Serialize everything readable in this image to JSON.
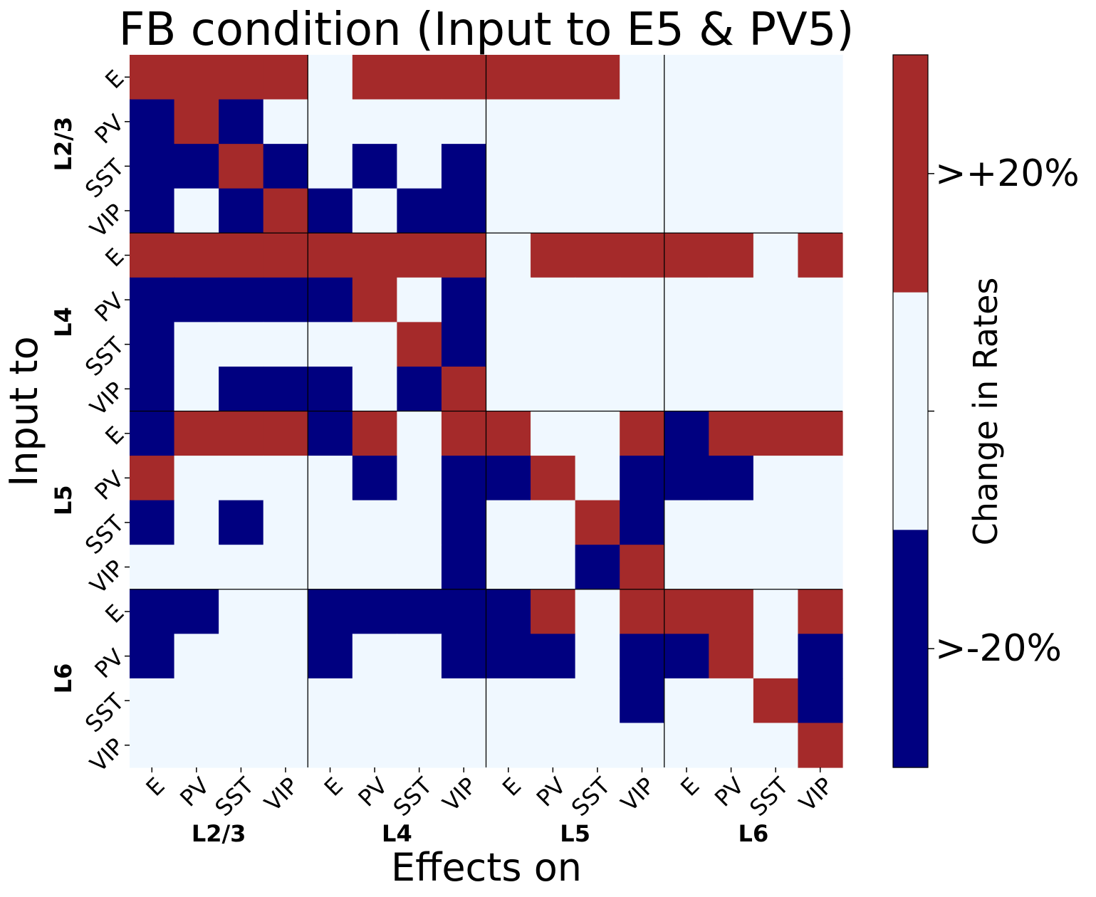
{
  "chart_data": {
    "type": "heatmap",
    "title": "FB condition (Input to E5 & PV5)",
    "xlabel": "Effects on",
    "ylabel": "Input to",
    "x_tick_labels": [
      "E",
      "PV",
      "SST",
      "VIP",
      "E",
      "PV",
      "SST",
      "VIP",
      "E",
      "PV",
      "SST",
      "VIP",
      "E",
      "PV",
      "SST",
      "VIP"
    ],
    "y_tick_labels": [
      "E",
      "PV",
      "SST",
      "VIP",
      "E",
      "PV",
      "SST",
      "VIP",
      "E",
      "PV",
      "SST",
      "VIP",
      "E",
      "PV",
      "SST",
      "VIP"
    ],
    "x_groups": [
      "L2/3",
      "L4",
      "L5",
      "L6"
    ],
    "y_groups": [
      "L2/3",
      "L4",
      "L5",
      "L6"
    ],
    "colorbar": {
      "label": "Change in Rates",
      "tick_labels": [
        ">+20%",
        ">-20%"
      ],
      "levels": [
        -1,
        0,
        1
      ]
    },
    "colors": {
      "decrease": "#000080",
      "neutral": "#f0f8ff",
      "increase": "#a52a2a"
    },
    "matrix": [
      [
        1,
        1,
        1,
        1,
        0,
        1,
        1,
        1,
        1,
        1,
        1,
        0,
        0,
        0,
        0,
        0
      ],
      [
        -1,
        1,
        -1,
        0,
        0,
        0,
        0,
        0,
        0,
        0,
        0,
        0,
        0,
        0,
        0,
        0
      ],
      [
        -1,
        -1,
        1,
        -1,
        0,
        -1,
        0,
        -1,
        0,
        0,
        0,
        0,
        0,
        0,
        0,
        0
      ],
      [
        -1,
        0,
        -1,
        1,
        -1,
        0,
        -1,
        -1,
        0,
        0,
        0,
        0,
        0,
        0,
        0,
        0
      ],
      [
        1,
        1,
        1,
        1,
        1,
        1,
        1,
        1,
        0,
        1,
        1,
        1,
        1,
        1,
        0,
        1
      ],
      [
        -1,
        -1,
        -1,
        -1,
        -1,
        1,
        0,
        -1,
        0,
        0,
        0,
        0,
        0,
        0,
        0,
        0
      ],
      [
        -1,
        0,
        0,
        0,
        0,
        0,
        1,
        -1,
        0,
        0,
        0,
        0,
        0,
        0,
        0,
        0
      ],
      [
        -1,
        0,
        -1,
        -1,
        -1,
        0,
        -1,
        1,
        0,
        0,
        0,
        0,
        0,
        0,
        0,
        0
      ],
      [
        -1,
        1,
        1,
        1,
        -1,
        1,
        0,
        1,
        1,
        0,
        0,
        1,
        -1,
        1,
        1,
        1
      ],
      [
        1,
        0,
        0,
        0,
        0,
        -1,
        0,
        -1,
        -1,
        1,
        0,
        -1,
        -1,
        -1,
        0,
        0
      ],
      [
        -1,
        0,
        -1,
        0,
        0,
        0,
        0,
        -1,
        0,
        0,
        1,
        -1,
        0,
        0,
        0,
        0
      ],
      [
        0,
        0,
        0,
        0,
        0,
        0,
        0,
        -1,
        0,
        0,
        -1,
        1,
        0,
        0,
        0,
        0
      ],
      [
        -1,
        -1,
        0,
        0,
        -1,
        -1,
        -1,
        -1,
        -1,
        1,
        0,
        1,
        1,
        1,
        0,
        1
      ],
      [
        -1,
        0,
        0,
        0,
        -1,
        0,
        0,
        -1,
        -1,
        -1,
        0,
        -1,
        -1,
        1,
        0,
        -1
      ],
      [
        0,
        0,
        0,
        0,
        0,
        0,
        0,
        0,
        0,
        0,
        0,
        -1,
        0,
        0,
        1,
        -1
      ],
      [
        0,
        0,
        0,
        0,
        0,
        0,
        0,
        0,
        0,
        0,
        0,
        0,
        0,
        0,
        0,
        1
      ]
    ]
  }
}
